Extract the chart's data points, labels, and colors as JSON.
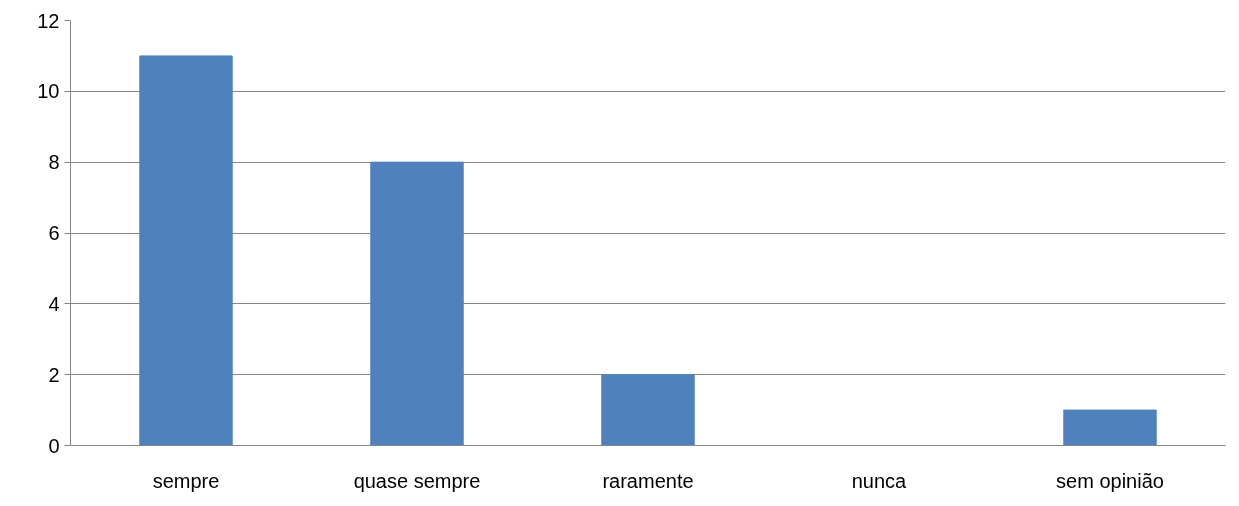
{
  "chart_data": {
    "type": "bar",
    "categories": [
      "sempre",
      "quase sempre",
      "raramente",
      "nunca",
      "sem opinião"
    ],
    "values": [
      11,
      8,
      2,
      0,
      1
    ],
    "color": "#4f81bd",
    "ylim": [
      0,
      12
    ],
    "yticks": [
      0,
      2,
      4,
      6,
      8,
      10,
      12
    ],
    "grid": "y"
  }
}
